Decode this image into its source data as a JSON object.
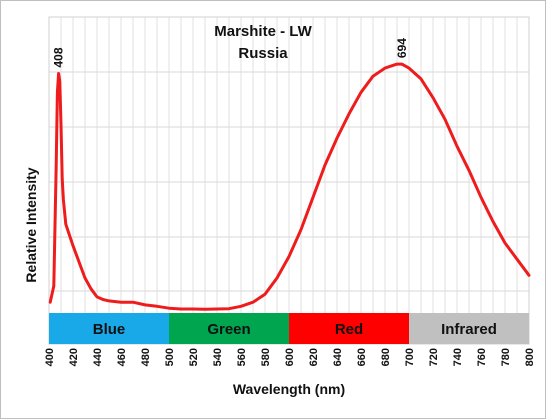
{
  "chart_data": {
    "type": "line",
    "title": "Marshite - LW",
    "subtitle": "Russia",
    "xlabel": "Wavelength (nm)",
    "ylabel": "Relative Intensity",
    "xlim": [
      400,
      800
    ],
    "ylim": [
      0,
      1.1
    ],
    "grid": true,
    "x_ticks": [
      "400",
      "420",
      "440",
      "460",
      "480",
      "500",
      "520",
      "540",
      "560",
      "580",
      "600",
      "620",
      "640",
      "660",
      "680",
      "700",
      "720",
      "740",
      "760",
      "780",
      "800"
    ],
    "series": [
      {
        "color": "#ee1c1c",
        "points": [
          [
            401,
            0.04
          ],
          [
            404,
            0.1
          ],
          [
            406,
            0.55
          ],
          [
            407,
            0.82
          ],
          [
            408,
            0.89
          ],
          [
            409,
            0.86
          ],
          [
            410,
            0.7
          ],
          [
            411,
            0.5
          ],
          [
            412,
            0.42
          ],
          [
            414,
            0.33
          ],
          [
            417,
            0.29
          ],
          [
            420,
            0.25
          ],
          [
            425,
            0.19
          ],
          [
            430,
            0.13
          ],
          [
            435,
            0.09
          ],
          [
            440,
            0.06
          ],
          [
            445,
            0.05
          ],
          [
            450,
            0.045
          ],
          [
            460,
            0.04
          ],
          [
            470,
            0.04
          ],
          [
            480,
            0.03
          ],
          [
            490,
            0.025
          ],
          [
            500,
            0.018
          ],
          [
            510,
            0.015
          ],
          [
            520,
            0.015
          ],
          [
            530,
            0.014
          ],
          [
            540,
            0.015
          ],
          [
            550,
            0.016
          ],
          [
            560,
            0.025
          ],
          [
            570,
            0.04
          ],
          [
            580,
            0.07
          ],
          [
            590,
            0.13
          ],
          [
            600,
            0.21
          ],
          [
            610,
            0.31
          ],
          [
            620,
            0.43
          ],
          [
            630,
            0.55
          ],
          [
            640,
            0.65
          ],
          [
            650,
            0.74
          ],
          [
            660,
            0.82
          ],
          [
            670,
            0.88
          ],
          [
            680,
            0.91
          ],
          [
            690,
            0.925
          ],
          [
            694,
            0.925
          ],
          [
            700,
            0.91
          ],
          [
            710,
            0.87
          ],
          [
            720,
            0.8
          ],
          [
            730,
            0.72
          ],
          [
            740,
            0.62
          ],
          [
            750,
            0.53
          ],
          [
            760,
            0.43
          ],
          [
            770,
            0.34
          ],
          [
            780,
            0.26
          ],
          [
            790,
            0.2
          ],
          [
            800,
            0.14
          ]
        ]
      }
    ],
    "annotations": [
      {
        "text": "408",
        "x": 408,
        "y": 0.89
      },
      {
        "text": "694",
        "x": 694,
        "y": 0.925
      }
    ],
    "bands": [
      {
        "label": "Blue",
        "from": 400,
        "to": 500,
        "color": "#19a9e8"
      },
      {
        "label": "Green",
        "from": 500,
        "to": 600,
        "color": "#00a54f"
      },
      {
        "label": "Red",
        "from": 600,
        "to": 700,
        "color": "#ff0000"
      },
      {
        "label": "Infrared",
        "from": 700,
        "to": 800,
        "color": "#c0c0c0"
      }
    ]
  }
}
